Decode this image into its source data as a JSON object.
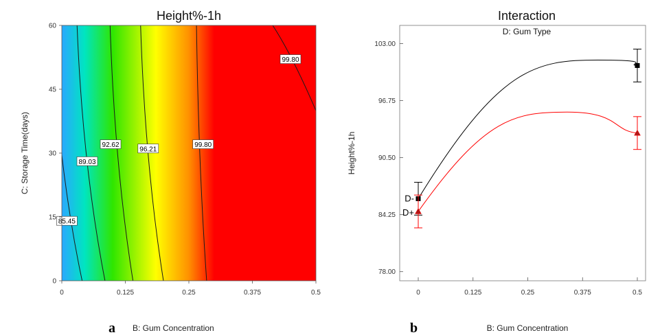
{
  "chart_data": [
    {
      "type": "heatmap",
      "panel": "a",
      "title": "Height%-1h",
      "xlabel": "B: Gum Concentration",
      "ylabel": "C: Storage Time(days)",
      "xlim": [
        0,
        0.5
      ],
      "ylim": [
        0,
        60
      ],
      "x_ticks": [
        "0",
        "0.125",
        "0.25",
        "0.375",
        "0.5"
      ],
      "y_ticks": [
        "0",
        "15",
        "30",
        "45",
        "60"
      ],
      "colormap": [
        "#2aa8ff",
        "#00e5c0",
        "#2ee600",
        "#ffff00",
        "#ff9000",
        "#ff0000"
      ],
      "contours": [
        {
          "label": "85.45",
          "x_at_bottom": 0.04,
          "x_at_top": -0.02,
          "label_x": 0.01,
          "label_y": 14
        },
        {
          "label": "89.03",
          "x_at_bottom": 0.085,
          "x_at_top": 0.03,
          "label_x": 0.05,
          "label_y": 28
        },
        {
          "label": "92.62",
          "x_at_bottom": 0.14,
          "x_at_top": 0.095,
          "label_x": 0.096,
          "label_y": 32
        },
        {
          "label": "96.21",
          "x_at_bottom": 0.2,
          "x_at_top": 0.155,
          "label_x": 0.17,
          "label_y": 31
        },
        {
          "label": "99.80",
          "x_at_bottom": 0.285,
          "x_at_top": 0.265,
          "label_x": 0.278,
          "label_y": 32
        },
        {
          "label": "99.80",
          "x_at_top": 0.415,
          "y_at_right": 40,
          "label_x": 0.45,
          "label_y": 52
        }
      ]
    },
    {
      "type": "line",
      "panel": "b",
      "title": "Interaction",
      "subtitle": "D: Gum Type",
      "xlabel": "B: Gum Concentration",
      "ylabel": "Height%-1h",
      "xlim": [
        0,
        0.5
      ],
      "ylim": [
        77,
        105
      ],
      "x_ticks": [
        "0",
        "0.125",
        "0.25",
        "0.375",
        "0.5"
      ],
      "y_ticks": [
        "78.00",
        "84.25",
        "90.50",
        "96.75",
        "103.00"
      ],
      "series": [
        {
          "name": "D-",
          "color": "#000000",
          "marker": "square",
          "points": [
            {
              "x": 0,
              "y": 86.0,
              "err": 1.8
            },
            {
              "x": 0.5,
              "y": 100.6,
              "err": 1.8
            }
          ],
          "curve": {
            "x0": 0,
            "y0": 86.0,
            "xpeak": 0.41,
            "ypeak": 101.2,
            "x1": 0.5,
            "y1": 100.6
          }
        },
        {
          "name": "D+",
          "color": "#ff0000",
          "marker": "triangle",
          "points": [
            {
              "x": 0,
              "y": 84.6,
              "err": 1.8
            },
            {
              "x": 0.5,
              "y": 93.2,
              "err": 1.8
            }
          ],
          "curve": {
            "x0": 0,
            "y0": 84.6,
            "xpeak": 0.34,
            "ypeak": 95.5,
            "x1": 0.5,
            "y1": 93.2
          }
        }
      ]
    }
  ]
}
